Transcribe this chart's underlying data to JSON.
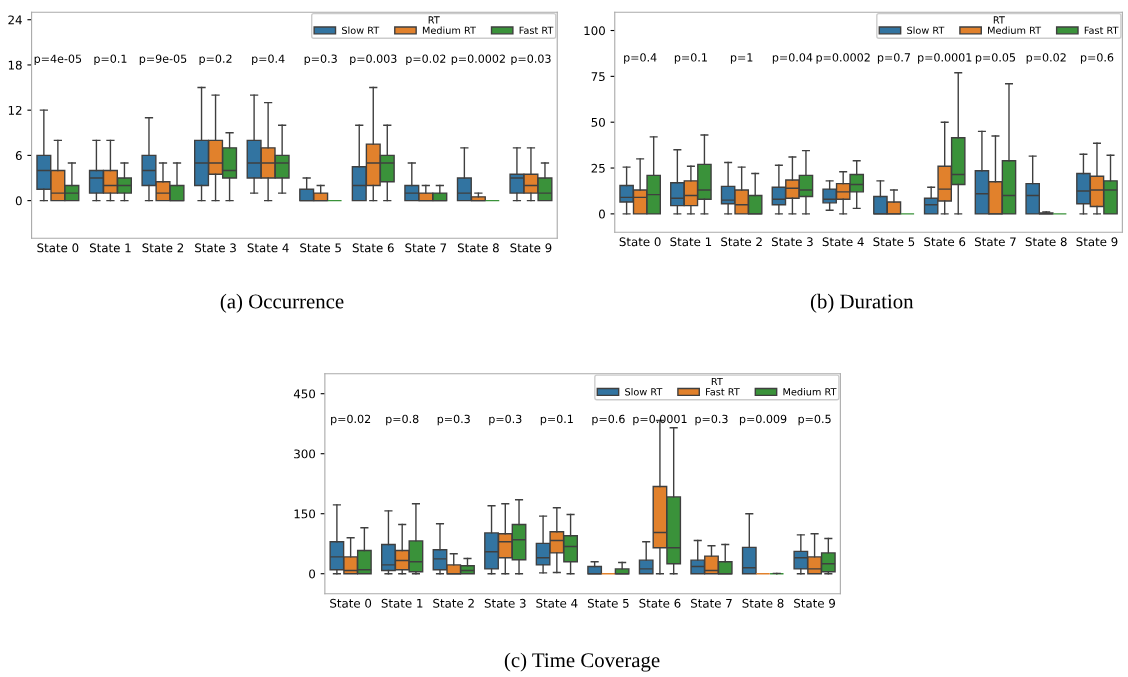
{
  "chart_data": [
    {
      "type": "box",
      "title": "(a) Occurrence",
      "legend_title": "RT",
      "legend": "top right",
      "grid": false,
      "categories": [
        "State 0",
        "State 1",
        "State 2",
        "State 3",
        "State 4",
        "State 5",
        "State 6",
        "State 7",
        "State 8",
        "State 9"
      ],
      "ylim": [
        -5,
        25
      ],
      "yticks": [
        0,
        6,
        12,
        18,
        24
      ],
      "series": [
        {
          "name": "Slow RT",
          "color": "#3274a1",
          "boxes": [
            {
              "low": 0,
              "q1": 1.5,
              "median": 4,
              "q3": 6,
              "high": 12
            },
            {
              "low": 0,
              "q1": 1,
              "median": 3,
              "q3": 4,
              "high": 8
            },
            {
              "low": 0,
              "q1": 2,
              "median": 4,
              "q3": 6,
              "high": 11
            },
            {
              "low": 0,
              "q1": 2,
              "median": 5,
              "q3": 8,
              "high": 15
            },
            {
              "low": 1,
              "q1": 3,
              "median": 5,
              "q3": 8,
              "high": 14
            },
            {
              "low": 0,
              "q1": 0,
              "median": 0,
              "q3": 1.5,
              "high": 3
            },
            {
              "low": 0,
              "q1": 0,
              "median": 2,
              "q3": 4.5,
              "high": 10
            },
            {
              "low": 0,
              "q1": 0,
              "median": 1,
              "q3": 2,
              "high": 5
            },
            {
              "low": 0,
              "q1": 0,
              "median": 1,
              "q3": 3,
              "high": 7
            },
            {
              "low": 0,
              "q1": 1,
              "median": 3,
              "q3": 3.5,
              "high": 7
            }
          ]
        },
        {
          "name": "Medium RT",
          "color": "#e1812c",
          "boxes": [
            {
              "low": 0,
              "q1": 0,
              "median": 1,
              "q3": 4,
              "high": 8
            },
            {
              "low": 0,
              "q1": 1,
              "median": 2,
              "q3": 4,
              "high": 8
            },
            {
              "low": 0,
              "q1": 0,
              "median": 1,
              "q3": 2.5,
              "high": 5
            },
            {
              "low": 0,
              "q1": 3.5,
              "median": 5,
              "q3": 8,
              "high": 14
            },
            {
              "low": 0,
              "q1": 3,
              "median": 5,
              "q3": 7,
              "high": 13
            },
            {
              "low": 0,
              "q1": 0,
              "median": 0,
              "q3": 1,
              "high": 2
            },
            {
              "low": 0,
              "q1": 2,
              "median": 5,
              "q3": 7.5,
              "high": 15
            },
            {
              "low": 0,
              "q1": 0,
              "median": 0,
              "q3": 1,
              "high": 2
            },
            {
              "low": 0,
              "q1": 0,
              "median": 0,
              "q3": 0.5,
              "high": 1
            },
            {
              "low": 0,
              "q1": 1,
              "median": 2,
              "q3": 3.5,
              "high": 7
            }
          ]
        },
        {
          "name": "Fast RT",
          "color": "#3a923a",
          "boxes": [
            {
              "low": 0,
              "q1": 0,
              "median": 1,
              "q3": 2,
              "high": 5
            },
            {
              "low": 0,
              "q1": 1,
              "median": 2,
              "q3": 3,
              "high": 5
            },
            {
              "low": 0,
              "q1": 0,
              "median": 0,
              "q3": 2,
              "high": 5
            },
            {
              "low": 0,
              "q1": 3,
              "median": 4,
              "q3": 7,
              "high": 9
            },
            {
              "low": 1,
              "q1": 3,
              "median": 5,
              "q3": 6,
              "high": 10
            },
            {
              "low": 0,
              "q1": 0,
              "median": 0,
              "q3": 0,
              "high": 0
            },
            {
              "low": 0,
              "q1": 2.5,
              "median": 5,
              "q3": 6,
              "high": 10
            },
            {
              "low": 0,
              "q1": 0,
              "median": 0,
              "q3": 1,
              "high": 2
            },
            {
              "low": 0,
              "q1": 0,
              "median": 0,
              "q3": 0,
              "high": 0
            },
            {
              "low": 0,
              "q1": 0,
              "median": 1,
              "q3": 3,
              "high": 5
            }
          ]
        }
      ],
      "annotations": [
        "p=4e-05",
        "p=0.1",
        "p=9e-05",
        "p=0.2",
        "p=0.4",
        "p=0.3",
        "p=0.003",
        "p=0.02",
        "p=0.0002",
        "p=0.03"
      ]
    },
    {
      "type": "box",
      "title": "(b) Duration",
      "legend_title": "RT",
      "legend": "top right",
      "grid": false,
      "categories": [
        "State 0",
        "State 1",
        "State 2",
        "State 3",
        "State 4",
        "State 5",
        "State 6",
        "State 7",
        "State 8",
        "State 9"
      ],
      "ylim": [
        -10,
        110
      ],
      "yticks": [
        0,
        25,
        50,
        75,
        100
      ],
      "series": [
        {
          "name": "Slow RT",
          "color": "#3274a1",
          "boxes": [
            {
              "low": 0,
              "q1": 6.5,
              "median": 9,
              "q3": 15.5,
              "high": 25.5
            },
            {
              "low": 0,
              "q1": 4.5,
              "median": 8.5,
              "q3": 17,
              "high": 35
            },
            {
              "low": 0,
              "q1": 5.5,
              "median": 7.5,
              "q3": 15,
              "high": 28
            },
            {
              "low": 0,
              "q1": 5,
              "median": 8,
              "q3": 14.5,
              "high": 26.5
            },
            {
              "low": 2,
              "q1": 6,
              "median": 8,
              "q3": 13.5,
              "high": 18
            },
            {
              "low": 0,
              "q1": 0,
              "median": 0,
              "q3": 9.5,
              "high": 18
            },
            {
              "low": 0,
              "q1": 0,
              "median": 5,
              "q3": 8.5,
              "high": 14.5
            },
            {
              "low": 0,
              "q1": 0,
              "median": 11,
              "q3": 23.5,
              "high": 45
            },
            {
              "low": 0,
              "q1": 0,
              "median": 10,
              "q3": 16.5,
              "high": 31.5
            },
            {
              "low": 0,
              "q1": 5.5,
              "median": 12.5,
              "q3": 22,
              "high": 32.5
            }
          ]
        },
        {
          "name": "Medium RT",
          "color": "#e1812c",
          "boxes": [
            {
              "low": 0,
              "q1": 0,
              "median": 9,
              "q3": 13,
              "high": 30
            },
            {
              "low": 0,
              "q1": 4.5,
              "median": 10,
              "q3": 18,
              "high": 26
            },
            {
              "low": 0,
              "q1": 0,
              "median": 5,
              "q3": 13,
              "high": 25.5
            },
            {
              "low": 0,
              "q1": 8.5,
              "median": 14,
              "q3": 18.5,
              "high": 31
            },
            {
              "low": 0,
              "q1": 8,
              "median": 12,
              "q3": 16.5,
              "high": 23
            },
            {
              "low": 0,
              "q1": 0,
              "median": 0,
              "q3": 6.5,
              "high": 13
            },
            {
              "low": 0,
              "q1": 7,
              "median": 13.5,
              "q3": 26,
              "high": 50
            },
            {
              "low": 0,
              "q1": 0,
              "median": 0,
              "q3": 17.5,
              "high": 42.5
            },
            {
              "low": 0,
              "q1": 0,
              "median": 0,
              "q3": 0.5,
              "high": 1
            },
            {
              "low": 0,
              "q1": 4,
              "median": 13,
              "q3": 20.5,
              "high": 38.5
            }
          ]
        },
        {
          "name": "Fast RT",
          "color": "#3a923a",
          "boxes": [
            {
              "low": 0,
              "q1": 0,
              "median": 10.5,
              "q3": 21,
              "high": 42
            },
            {
              "low": 0,
              "q1": 8,
              "median": 13,
              "q3": 27,
              "high": 43
            },
            {
              "low": 0,
              "q1": 0,
              "median": 0,
              "q3": 10,
              "high": 22
            },
            {
              "low": 0,
              "q1": 9.5,
              "median": 13,
              "q3": 21,
              "high": 34.5
            },
            {
              "low": 3,
              "q1": 12,
              "median": 16,
              "q3": 21.5,
              "high": 29
            },
            {
              "low": 0,
              "q1": 0,
              "median": 0,
              "q3": 0,
              "high": 0
            },
            {
              "low": 0,
              "q1": 16,
              "median": 21.5,
              "q3": 41.5,
              "high": 77
            },
            {
              "low": 0,
              "q1": 0,
              "median": 10,
              "q3": 29,
              "high": 71
            },
            {
              "low": 0,
              "q1": 0,
              "median": 0,
              "q3": 0,
              "high": 0
            },
            {
              "low": 0,
              "q1": 0,
              "median": 13,
              "q3": 18,
              "high": 32
            }
          ]
        }
      ],
      "annotations": [
        "p=0.4",
        "p=0.1",
        "p=1",
        "p=0.04",
        "p=0.0002",
        "p=0.7",
        "p=0.0001",
        "p=0.05",
        "p=0.02",
        "p=0.6"
      ]
    },
    {
      "type": "box",
      "title": "(c) Time Coverage",
      "legend_title": "RT",
      "legend": "top right",
      "grid": false,
      "categories": [
        "State 0",
        "State 1",
        "State 2",
        "State 3",
        "State 4",
        "State 5",
        "State 6",
        "State 7",
        "State 8",
        "State 9"
      ],
      "ylim": [
        -50,
        500
      ],
      "yticks": [
        0,
        150,
        300,
        450
      ],
      "series": [
        {
          "name": "Slow RT",
          "color": "#3274a1",
          "boxes": [
            {
              "low": 0,
              "q1": 10,
              "median": 42,
              "q3": 80,
              "high": 172
            },
            {
              "low": 0,
              "q1": 8,
              "median": 22,
              "q3": 73,
              "high": 157
            },
            {
              "low": 0,
              "q1": 10,
              "median": 37,
              "q3": 60,
              "high": 125
            },
            {
              "low": 0,
              "q1": 12,
              "median": 55,
              "q3": 102,
              "high": 170
            },
            {
              "low": 2,
              "q1": 22,
              "median": 40,
              "q3": 76,
              "high": 144
            },
            {
              "low": 0,
              "q1": 0,
              "median": 0,
              "q3": 18,
              "high": 30
            },
            {
              "low": 0,
              "q1": 0,
              "median": 12,
              "q3": 34,
              "high": 80
            },
            {
              "low": 0,
              "q1": 0,
              "median": 18,
              "q3": 34,
              "high": 83
            },
            {
              "low": 0,
              "q1": 0,
              "median": 15,
              "q3": 66,
              "high": 150
            },
            {
              "low": 0,
              "q1": 12,
              "median": 40,
              "q3": 56,
              "high": 97
            }
          ]
        },
        {
          "name": "Fast RT",
          "color": "#e1812c",
          "boxes": [
            {
              "low": 0,
              "q1": 0,
              "median": 8,
              "q3": 42,
              "high": 90
            },
            {
              "low": 0,
              "q1": 10,
              "median": 33,
              "q3": 58,
              "high": 123
            },
            {
              "low": 0,
              "q1": 0,
              "median": 0,
              "q3": 22,
              "high": 50
            },
            {
              "low": 0,
              "q1": 40,
              "median": 80,
              "q3": 100,
              "high": 175
            },
            {
              "low": 3,
              "q1": 52,
              "median": 83,
              "q3": 105,
              "high": 165
            },
            {
              "low": 0,
              "q1": 0,
              "median": 0,
              "q3": 0,
              "high": 0
            },
            {
              "low": 0,
              "q1": 65,
              "median": 103,
              "q3": 218,
              "high": 383
            },
            {
              "low": 0,
              "q1": 0,
              "median": 8,
              "q3": 44,
              "high": 70
            },
            {
              "low": 0,
              "q1": 0,
              "median": 0,
              "q3": 0,
              "high": 0
            },
            {
              "low": 0,
              "q1": 0,
              "median": 12,
              "q3": 42,
              "high": 100
            }
          ]
        },
        {
          "name": "Medium RT",
          "color": "#3a923a",
          "boxes": [
            {
              "low": 0,
              "q1": 0,
              "median": 10,
              "q3": 58,
              "high": 115
            },
            {
              "low": 0,
              "q1": 5,
              "median": 30,
              "q3": 82,
              "high": 175
            },
            {
              "low": 0,
              "q1": 0,
              "median": 8,
              "q3": 20,
              "high": 38
            },
            {
              "low": 0,
              "q1": 35,
              "median": 85,
              "q3": 123,
              "high": 185
            },
            {
              "low": 0,
              "q1": 30,
              "median": 68,
              "q3": 95,
              "high": 148
            },
            {
              "low": 0,
              "q1": 0,
              "median": 0,
              "q3": 12,
              "high": 28
            },
            {
              "low": 0,
              "q1": 25,
              "median": 65,
              "q3": 192,
              "high": 365
            },
            {
              "low": 0,
              "q1": 0,
              "median": 0,
              "q3": 30,
              "high": 73
            },
            {
              "low": 0,
              "q1": 0,
              "median": 0,
              "q3": 0,
              "high": 1
            },
            {
              "low": 0,
              "q1": 5,
              "median": 25,
              "q3": 52,
              "high": 88
            }
          ]
        }
      ],
      "annotations": [
        "p=0.02",
        "p=0.8",
        "p=0.3",
        "p=0.3",
        "p=0.1",
        "p=0.6",
        "p=0.0001",
        "p=0.3",
        "p=0.009",
        "p=0.5"
      ]
    }
  ]
}
